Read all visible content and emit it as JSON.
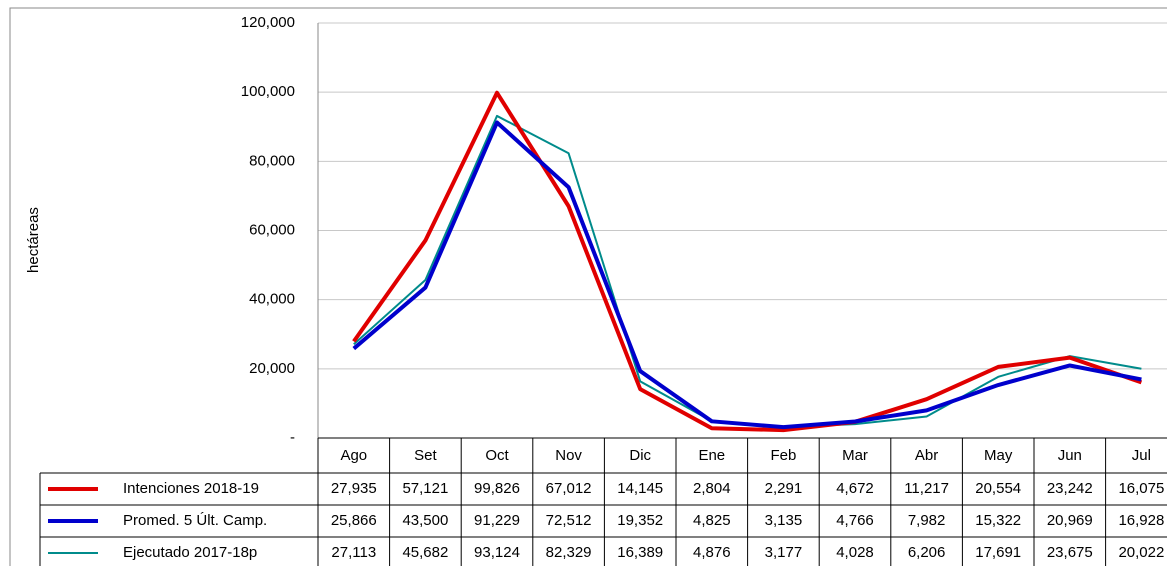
{
  "chart_data": {
    "type": "line",
    "ylabel": "hectáreas",
    "categories": [
      "Ago",
      "Set",
      "Oct",
      "Nov",
      "Dic",
      "Ene",
      "Feb",
      "Mar",
      "Abr",
      "May",
      "Jun",
      "Jul"
    ],
    "series": [
      {
        "name": "Intenciones 2018-19",
        "color": "#e00000",
        "width": 4,
        "values": [
          27935,
          57121,
          99826,
          67012,
          14145,
          2804,
          2291,
          4672,
          11217,
          20554,
          23242,
          16075
        ],
        "value_labels": [
          "27,935",
          "57,121",
          "99,826",
          "67,012",
          "14,145",
          "2,804",
          "2,291",
          "4,672",
          "11,217",
          "20,554",
          "23,242",
          "16,075"
        ]
      },
      {
        "name": "Promed. 5 Últ. Camp.",
        "color": "#0000cc",
        "width": 4,
        "values": [
          25866,
          43500,
          91229,
          72512,
          19352,
          4825,
          3135,
          4766,
          7982,
          15322,
          20969,
          16928
        ],
        "value_labels": [
          "25,866",
          "43,500",
          "91,229",
          "72,512",
          "19,352",
          "4,825",
          "3,135",
          "4,766",
          "7,982",
          "15,322",
          "20,969",
          "16,928"
        ]
      },
      {
        "name": "Ejecutado 2017-18p",
        "color": "#008b8b",
        "width": 2,
        "values": [
          27113,
          45682,
          93124,
          82329,
          16389,
          4876,
          3177,
          4028,
          6206,
          17691,
          23675,
          20022
        ],
        "value_labels": [
          "27,113",
          "45,682",
          "93,124",
          "82,329",
          "16,389",
          "4,876",
          "3,177",
          "4,028",
          "6,206",
          "17,691",
          "23,675",
          "20,022"
        ]
      }
    ],
    "ylim": [
      0,
      120000
    ],
    "yticks": [
      {
        "value": 0,
        "label": "-"
      },
      {
        "value": 20000,
        "label": "20,000"
      },
      {
        "value": 40000,
        "label": "40,000"
      },
      {
        "value": 60000,
        "label": "60,000"
      },
      {
        "value": 80000,
        "label": "80,000"
      },
      {
        "value": 100000,
        "label": "100,000"
      },
      {
        "value": 120000,
        "label": "120,000"
      }
    ],
    "grid": true
  }
}
